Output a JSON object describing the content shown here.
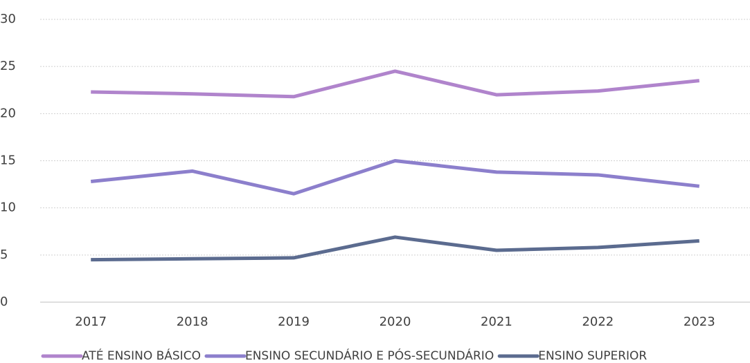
{
  "chart_data": {
    "type": "line",
    "categories": [
      "2017",
      "2018",
      "2019",
      "2020",
      "2021",
      "2022",
      "2023"
    ],
    "series": [
      {
        "name": "ATÉ ENSINO BÁSICO",
        "color": "#b084cc",
        "values": [
          22.3,
          22.1,
          21.8,
          24.5,
          22.0,
          22.4,
          23.5
        ]
      },
      {
        "name": "ENSINO SECUNDÁRIO E PÓS-SECUNDÁRIO",
        "color": "#8c7fcc",
        "values": [
          12.8,
          13.9,
          11.5,
          15.0,
          13.8,
          13.5,
          12.3
        ]
      },
      {
        "name": "ENSINO SUPERIOR",
        "color": "#5b6b8f",
        "values": [
          4.5,
          4.6,
          4.7,
          6.9,
          5.5,
          5.8,
          6.5
        ]
      }
    ],
    "ylim": [
      0,
      30
    ],
    "yticks": [
      0,
      5,
      10,
      15,
      20,
      25,
      30
    ],
    "grid": true,
    "legend": "bottom"
  }
}
